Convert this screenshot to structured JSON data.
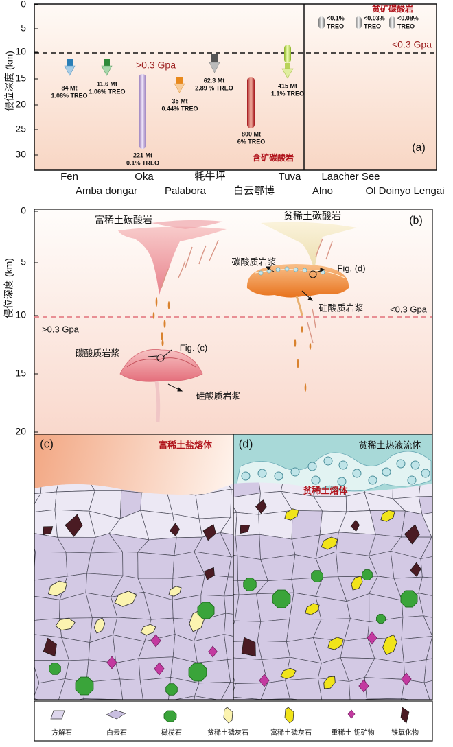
{
  "panel_a": {
    "label": "(a)",
    "y_axis_title": "侵位深度 (km)",
    "y_ticks": [
      "0",
      "5",
      "10",
      "15",
      "20",
      "25",
      "30"
    ],
    "pressure_high": ">0.3 Gpa",
    "pressure_low": "<0.3 Gpa",
    "ore_group": "含矿碳酸岩",
    "barren_group": "贫矿碳酸岩",
    "deposits": [
      {
        "tonnage": "84 Mt",
        "grade": "1.08% TREO"
      },
      {
        "tonnage": "11.6 Mt",
        "grade": "1.06% TREO"
      },
      {
        "tonnage": "221 Mt",
        "grade": "0.1% TREO"
      },
      {
        "tonnage": "35 Mt",
        "grade": "0.44% TREO"
      },
      {
        "tonnage": "62.3 Mt",
        "grade": "2.89 % TREO"
      },
      {
        "tonnage": "800 Mt",
        "grade": "6% TREO"
      },
      {
        "tonnage": "415 Mt",
        "grade": "1.1% TREO"
      }
    ],
    "barren_grades": [
      {
        "grade": "<0.1%",
        "unit": "TREO"
      },
      {
        "grade": "<0.03%",
        "unit": "TREO"
      },
      {
        "grade": "<0.08%",
        "unit": "TREO"
      }
    ],
    "localities": [
      "Fen",
      "Amba dongar",
      "Oka",
      "Palabora",
      "牦牛坪",
      "白云鄂博",
      "Tuva",
      "Laacher See",
      "Alno",
      "Ol Doinyo Lengai"
    ]
  },
  "panel_b": {
    "label": "(b)",
    "y_axis_title": "侵位深度 (km)",
    "y_ticks": [
      "0",
      "5",
      "10",
      "15",
      "20"
    ],
    "rich_carbonatite": "富稀土碳酸岩",
    "poor_carbonatite": "贫稀土碳酸岩",
    "carbonate_magma_right": "碳酸质岩浆",
    "fig_d": "Fig. (d)",
    "silicate_magma_right": "硅酸质岩浆",
    "carbonate_magma_left": "碳酸质岩浆",
    "fig_c": "Fig. (c)",
    "silicate_magma_left": "硅酸质岩浆",
    "pressure_high": ">0.3 Gpa",
    "pressure_low": "<0.3 Gpa"
  },
  "panel_c": {
    "label": "(c)",
    "melt": "富稀土盐熔体"
  },
  "panel_d": {
    "label": "(d)",
    "fluid": "贫稀土热液流体",
    "melt": "贫稀土熔体"
  },
  "legend": [
    "方解石",
    "白云石",
    "橄榄石",
    "贫稀土磷灰石",
    "富稀土磷灰石",
    "重稀土-铌矿物",
    "铁氧化物"
  ]
}
